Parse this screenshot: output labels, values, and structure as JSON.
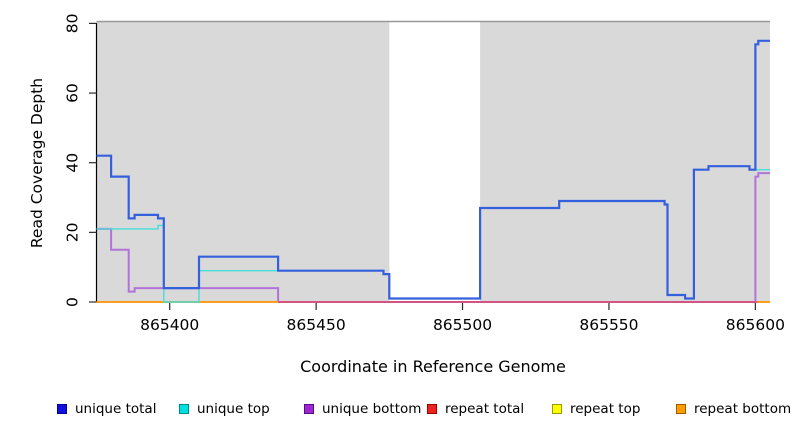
{
  "chart_data": {
    "type": "line",
    "subtype": "step-coverage",
    "xlabel": "Coordinate in Reference Genome",
    "ylabel": "Read Coverage Depth",
    "xlim": [
      865375,
      865605
    ],
    "ylim": [
      0,
      80
    ],
    "x_ticks": [
      865400,
      865450,
      865500,
      865550,
      865600
    ],
    "y_ticks": [
      0,
      20,
      40,
      60,
      80
    ],
    "grid": false,
    "panel_background": "#d9d9d9",
    "masked_region": {
      "x_start": 865475,
      "x_end": 865506,
      "color": "#ffffff"
    },
    "legend_position": "bottom",
    "series": [
      {
        "name": "unique total",
        "color": "#3560dd",
        "width": 2.2,
        "z": 6,
        "segments": [
          [
            [
              865375,
              42
            ],
            [
              865380,
              36
            ],
            [
              865386,
              24
            ],
            [
              865388,
              25
            ],
            [
              865396,
              24
            ],
            [
              865398,
              4
            ],
            [
              865410,
              13
            ],
            [
              865437,
              9
            ],
            [
              865473,
              8
            ],
            [
              865475,
              1
            ],
            [
              865506,
              27
            ],
            [
              865533,
              29
            ],
            [
              865569,
              28
            ],
            [
              865570,
              2
            ],
            [
              865576,
              1
            ],
            [
              865579,
              38
            ],
            [
              865584,
              39
            ],
            [
              865598,
              38
            ],
            [
              865600,
              74
            ],
            [
              865601,
              75
            ],
            [
              865605,
              75
            ]
          ]
        ]
      },
      {
        "name": "unique top",
        "color": "#45ded9",
        "width": 1.4,
        "z": 5,
        "segments": [
          [
            [
              865375,
              21
            ],
            [
              865396,
              22
            ],
            [
              865398,
              0
            ],
            [
              865410,
              9
            ],
            [
              865473,
              8
            ],
            [
              865475,
              1
            ],
            [
              865506,
              27
            ],
            [
              865533,
              29
            ],
            [
              865569,
              28
            ],
            [
              865570,
              2
            ],
            [
              865576,
              1
            ],
            [
              865579,
              38
            ],
            [
              865584,
              39
            ],
            [
              865598,
              38
            ],
            [
              865605,
              38
            ]
          ]
        ]
      },
      {
        "name": "unique bottom",
        "color": "#b273d9",
        "width": 2.0,
        "z": 2,
        "segments": [
          [
            [
              865375,
              21
            ],
            [
              865380,
              15
            ],
            [
              865386,
              3
            ],
            [
              865388,
              4
            ],
            [
              865437,
              0
            ],
            [
              865600,
              36
            ],
            [
              865601,
              37
            ],
            [
              865605,
              37
            ]
          ]
        ]
      },
      {
        "name": "repeat total",
        "color": "#dc4a68",
        "width": 1.6,
        "z": 3,
        "segments": [
          [
            [
              865375,
              0
            ],
            [
              865605,
              0
            ]
          ]
        ]
      },
      {
        "name": "repeat top",
        "color": "#ffee00",
        "width": 1.4,
        "z": 1,
        "segments": [
          [
            [
              865375,
              0
            ],
            [
              865605,
              0
            ]
          ]
        ]
      },
      {
        "name": "repeat bottom",
        "color": "#ff9d1e",
        "width": 2.0,
        "z": 4,
        "segments": [
          [
            [
              865375,
              0
            ],
            [
              865437,
              0
            ]
          ],
          [
            [
              865601,
              0
            ],
            [
              865605,
              0
            ]
          ]
        ]
      }
    ],
    "legend": [
      {
        "label": "unique total",
        "color": "#1111dd",
        "border": "#000099"
      },
      {
        "label": "unique top",
        "color": "#00e0e0",
        "border": "#008b8b"
      },
      {
        "label": "unique bottom",
        "color": "#9c27ce",
        "border": "#5c0a87"
      },
      {
        "label": "repeat total",
        "color": "#ee2222",
        "border": "#990000"
      },
      {
        "label": "repeat top",
        "color": "#ffff00",
        "border": "#999900"
      },
      {
        "label": "repeat bottom",
        "color": "#ff9d00",
        "border": "#995c00"
      }
    ]
  }
}
